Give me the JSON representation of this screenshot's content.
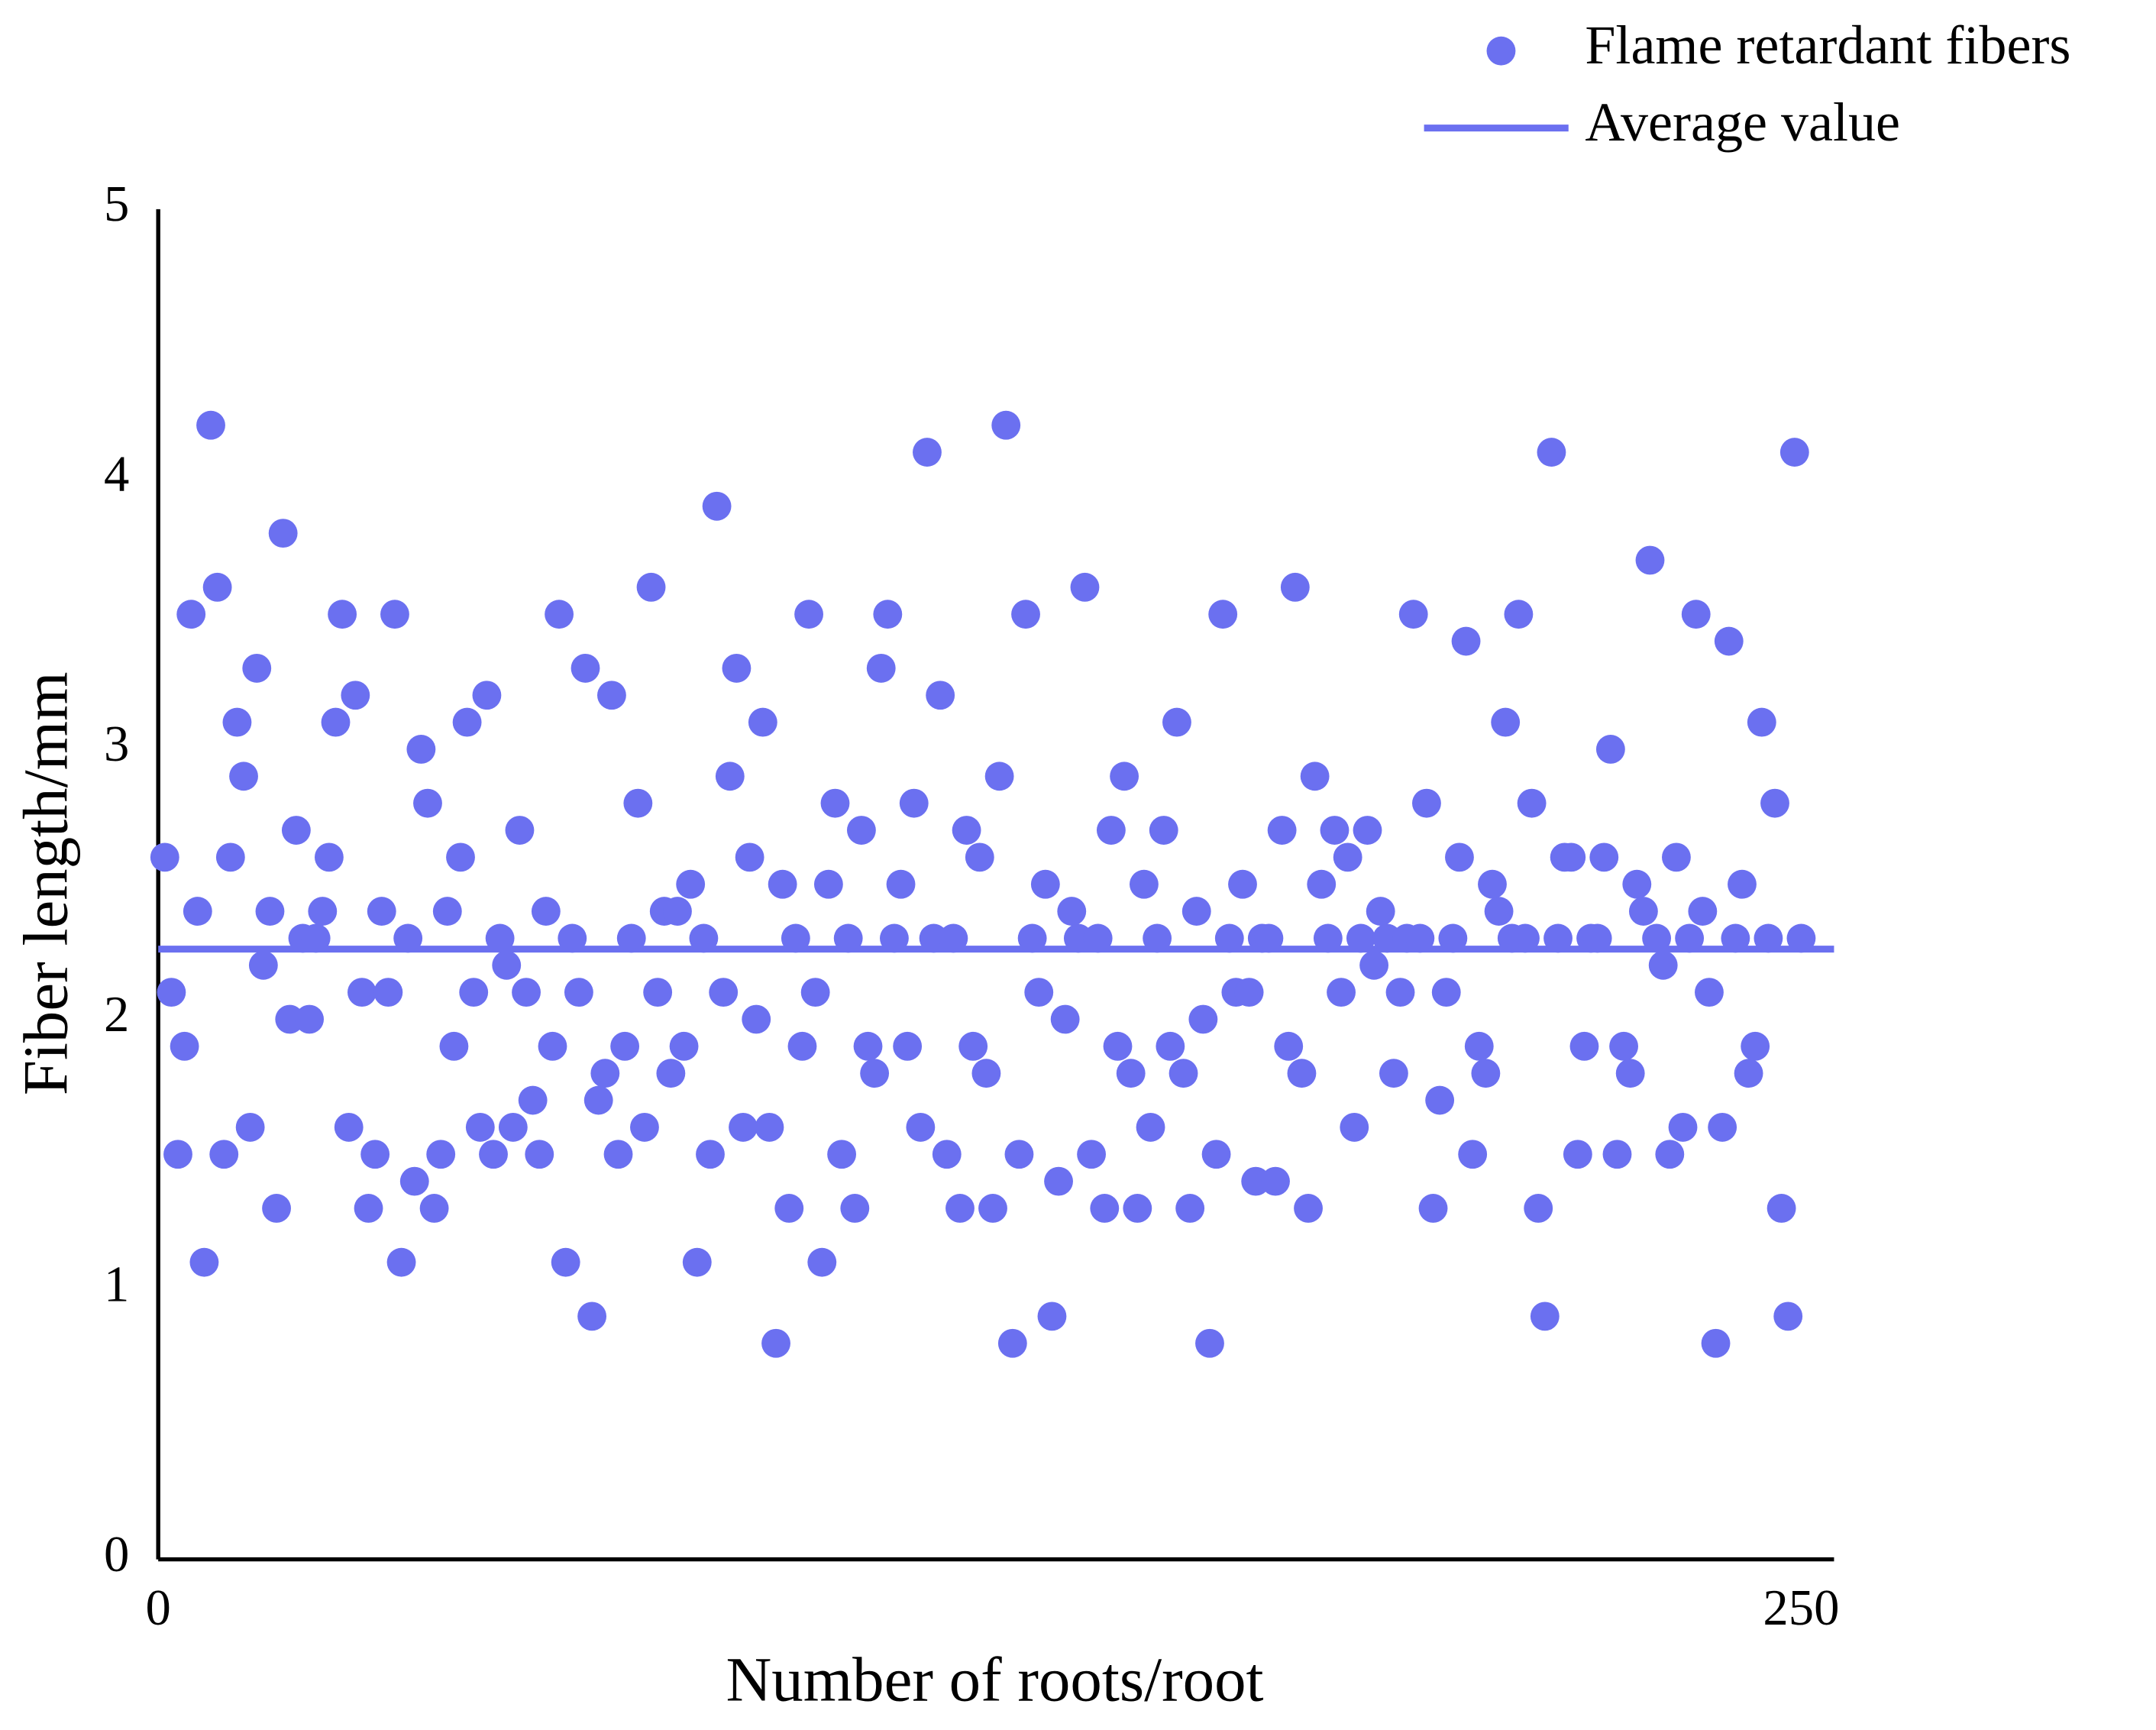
{
  "chart_data": {
    "type": "scatter",
    "x_label": "Number of roots/root",
    "y_label": "Fiber length/mm",
    "xlim": [
      0,
      255
    ],
    "xticks": [
      0,
      250
    ],
    "ylim": [
      0,
      5
    ],
    "yticks": [
      0,
      1,
      2,
      3,
      4,
      5
    ],
    "grid": false,
    "legend": "top-right",
    "x": [
      1,
      2,
      3,
      4,
      5,
      6,
      7,
      8,
      9,
      10,
      11,
      12,
      13,
      14,
      15,
      16,
      17,
      18,
      19,
      20,
      21,
      22,
      23,
      24,
      25,
      26,
      27,
      28,
      29,
      30,
      31,
      32,
      33,
      34,
      35,
      36,
      37,
      38,
      39,
      40,
      41,
      42,
      43,
      44,
      45,
      46,
      47,
      48,
      49,
      50,
      51,
      52,
      53,
      54,
      55,
      56,
      57,
      58,
      59,
      60,
      61,
      62,
      63,
      64,
      65,
      66,
      67,
      68,
      69,
      70,
      71,
      72,
      73,
      74,
      75,
      76,
      77,
      78,
      79,
      80,
      81,
      82,
      83,
      84,
      85,
      86,
      87,
      88,
      89,
      90,
      91,
      92,
      93,
      94,
      95,
      96,
      97,
      98,
      99,
      100,
      101,
      102,
      103,
      104,
      105,
      106,
      107,
      108,
      109,
      110,
      111,
      112,
      113,
      114,
      115,
      116,
      117,
      118,
      119,
      120,
      121,
      122,
      123,
      124,
      125,
      126,
      127,
      128,
      129,
      130,
      131,
      132,
      133,
      134,
      135,
      136,
      137,
      138,
      139,
      140,
      141,
      142,
      143,
      144,
      145,
      146,
      147,
      148,
      149,
      150,
      151,
      152,
      153,
      154,
      155,
      156,
      157,
      158,
      159,
      160,
      161,
      162,
      163,
      164,
      165,
      166,
      167,
      168,
      169,
      170,
      171,
      172,
      173,
      174,
      175,
      176,
      177,
      178,
      179,
      180,
      181,
      182,
      183,
      184,
      185,
      186,
      187,
      188,
      189,
      190,
      191,
      192,
      193,
      194,
      195,
      196,
      197,
      198,
      199,
      200,
      201,
      202,
      203,
      204,
      205,
      206,
      207,
      208,
      209,
      210,
      211,
      212,
      213,
      214,
      215,
      216,
      217,
      218,
      219,
      220,
      221,
      222,
      223,
      224,
      225,
      226,
      227,
      228,
      229,
      230,
      231,
      232,
      233,
      234,
      235,
      236,
      237,
      238,
      239,
      240,
      241,
      242,
      243,
      244,
      245,
      246,
      247,
      248,
      249,
      250
    ],
    "series": [
      {
        "name": "Flame retardant fibers",
        "color": "#6b70f0",
        "values": [
          2.6,
          2.1,
          1.5,
          1.9,
          3.5,
          2.4,
          1.1,
          4.2,
          3.6,
          1.5,
          2.6,
          3.1,
          2.9,
          1.6,
          3.3,
          2.2,
          2.4,
          1.3,
          3.8,
          2.0,
          2.7,
          2.3,
          2.0,
          2.3,
          2.4,
          2.6,
          3.1,
          3.5,
          1.6,
          3.2,
          2.1,
          1.3,
          1.5,
          2.4,
          2.1,
          3.5,
          1.1,
          2.3,
          1.4,
          3.0,
          2.8,
          1.3,
          1.5,
          2.4,
          1.9,
          2.6,
          3.1,
          2.1,
          1.6,
          3.2,
          1.5,
          2.3,
          2.2,
          1.6,
          2.7,
          2.1,
          1.7,
          1.5,
          2.4,
          1.9,
          3.5,
          1.1,
          2.3,
          2.1,
          3.3,
          0.9,
          1.7,
          1.8,
          3.2,
          1.5,
          1.9,
          2.3,
          2.8,
          1.6,
          3.6,
          2.1,
          2.4,
          1.8,
          2.4,
          1.9,
          2.5,
          1.1,
          2.3,
          1.5,
          3.9,
          2.1,
          2.9,
          3.3,
          1.6,
          2.6,
          2.0,
          3.1,
          1.6,
          0.8,
          2.5,
          1.3,
          2.3,
          1.9,
          3.5,
          2.1,
          1.1,
          2.5,
          2.8,
          1.5,
          2.3,
          1.3,
          2.7,
          1.9,
          1.8,
          3.3,
          3.5,
          2.3,
          2.5,
          1.9,
          2.8,
          1.6,
          4.1,
          2.3,
          3.2,
          1.5,
          2.3,
          1.3,
          2.7,
          1.9,
          2.6,
          1.8,
          1.3,
          2.9,
          4.2,
          0.8,
          1.5,
          3.5,
          2.3,
          2.1,
          2.5,
          0.9,
          1.4,
          2.0,
          2.4,
          2.3,
          3.6,
          1.5,
          2.3,
          1.3,
          2.7,
          1.9,
          2.9,
          1.8,
          1.3,
          2.5,
          1.6,
          2.3,
          2.7,
          1.9,
          3.1,
          1.8,
          1.3,
          2.4,
          2.0,
          0.8,
          1.5,
          3.5,
          2.3,
          2.1,
          2.5,
          2.1,
          1.4,
          2.3,
          2.3,
          1.4,
          2.7,
          1.9,
          3.6,
          1.8,
          1.3,
          2.9,
          2.5,
          2.3,
          2.7,
          2.1,
          2.6,
          1.6,
          2.3,
          2.7,
          2.2,
          2.4,
          2.3,
          1.8,
          2.1,
          2.3,
          3.5,
          2.3,
          2.8,
          1.3,
          1.7,
          2.1,
          2.3,
          2.6,
          3.4,
          1.5,
          1.9,
          1.8,
          2.5,
          2.4,
          3.1,
          2.3,
          3.5,
          2.3,
          2.8,
          1.3,
          0.9,
          4.1,
          2.3,
          2.6,
          2.6,
          1.5,
          1.9,
          2.3,
          2.3,
          2.6,
          3.0,
          1.5,
          1.9,
          1.8,
          2.5,
          2.4,
          3.7,
          2.3,
          2.2,
          1.5,
          2.6,
          1.6,
          2.3,
          3.5,
          2.4,
          2.1,
          0.8,
          1.6,
          3.4,
          2.3,
          2.5,
          1.8,
          1.9,
          3.1,
          2.3,
          2.8,
          1.3,
          0.9,
          4.1,
          2.3
        ]
      },
      {
        "name": "Average value",
        "color": "#6b70f0",
        "type": "line",
        "value": 2.26
      }
    ]
  }
}
